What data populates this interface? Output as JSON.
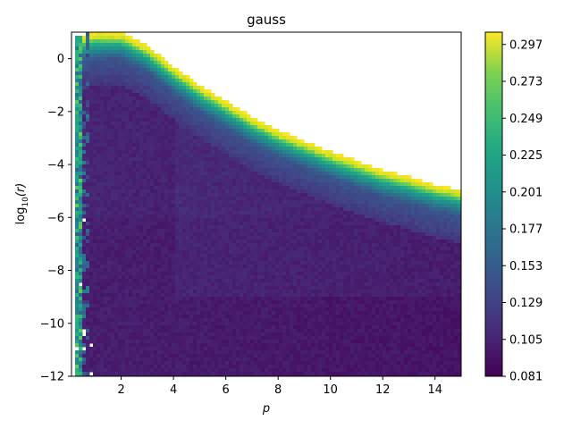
{
  "chart_data": {
    "type": "heatmap",
    "title": "gauss",
    "xlabel": "p",
    "ylabel_main": "log",
    "ylabel_sub": "10",
    "ylabel_arg": "(r)",
    "xlim": [
      0.1,
      15
    ],
    "ylim": [
      -12,
      1
    ],
    "x_ticks": [
      2,
      4,
      6,
      8,
      10,
      12,
      14
    ],
    "y_ticks": [
      0,
      -2,
      -4,
      -6,
      -8,
      -10,
      -12
    ],
    "y_tick_labels": [
      "0",
      "−2",
      "−4",
      "−6",
      "−8",
      "−10",
      "−12"
    ],
    "colorbar": {
      "colormap": "viridis",
      "min": 0.081,
      "max": 0.305,
      "ticks": [
        "0.081",
        "0.105",
        "0.129",
        "0.153",
        "0.177",
        "0.201",
        "0.225",
        "0.249",
        "0.273",
        "0.297"
      ]
    },
    "upper_boundary": {
      "description": "log10(r) upper edge of populated region vs p",
      "p": [
        0.1,
        1.0,
        2.0,
        3.0,
        4.0,
        5.0,
        6.0,
        7.0,
        8.0,
        9.0,
        10.0,
        11.0,
        12.0,
        13.0,
        14.0,
        15.0
      ],
      "log10_r": [
        0.8,
        1.0,
        1.0,
        0.5,
        -0.3,
        -1.0,
        -1.6,
        -2.2,
        -2.7,
        -3.1,
        -3.5,
        -3.85,
        -4.2,
        -4.45,
        -4.75,
        -4.95
      ]
    },
    "left_edge_values": {
      "description": "elevated values along left column near p≈0.3-0.8",
      "value_range": [
        0.15,
        0.25
      ]
    },
    "interior_value_range": [
      0.081,
      0.115
    ],
    "boundary_band_value_range": [
      0.13,
      0.305
    ]
  }
}
